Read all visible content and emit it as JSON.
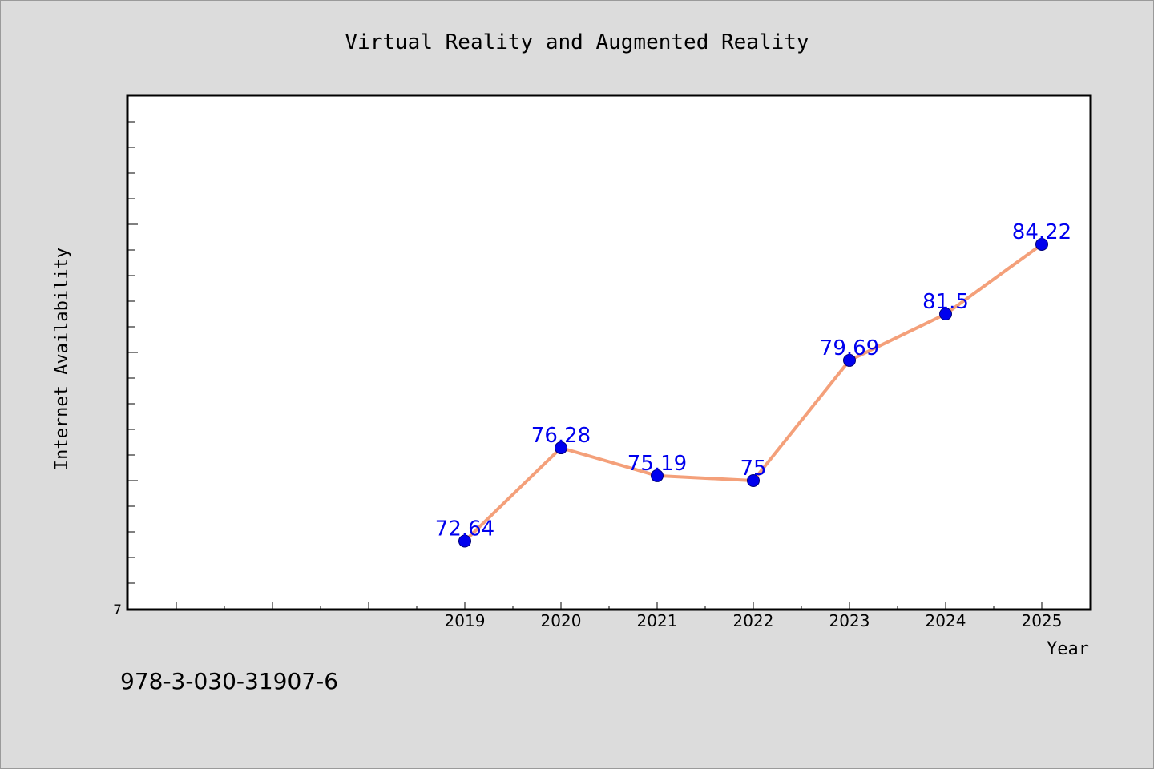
{
  "chart_data": {
    "type": "line",
    "title": "Virtual Reality and Augmented Reality",
    "xlabel": "Year",
    "ylabel": "Internet Availability",
    "x": [
      2019,
      2020,
      2021,
      2022,
      2023,
      2024,
      2025
    ],
    "x_tick_labels": [
      "2019",
      "2020",
      "2021",
      "2022",
      "2023",
      "2024",
      "2025"
    ],
    "x_range": [
      2015.5,
      2025.5
    ],
    "series": [
      {
        "values": [
          72.64,
          76.28,
          75.19,
          75,
          79.69,
          81.5,
          84.22
        ],
        "data_labels": [
          "72.64",
          "76.28",
          "75.19",
          "75",
          "79.69",
          "81.5",
          "84.22"
        ]
      }
    ],
    "y_tick_labels": [
      "7"
    ],
    "ylim": [
      70,
      90
    ],
    "grid": false,
    "line_color": "#f4a07a",
    "marker_color": "#0000ee",
    "label_color": "#0000ee"
  },
  "footer": {
    "isbn": "978-3-030-31907-6"
  }
}
